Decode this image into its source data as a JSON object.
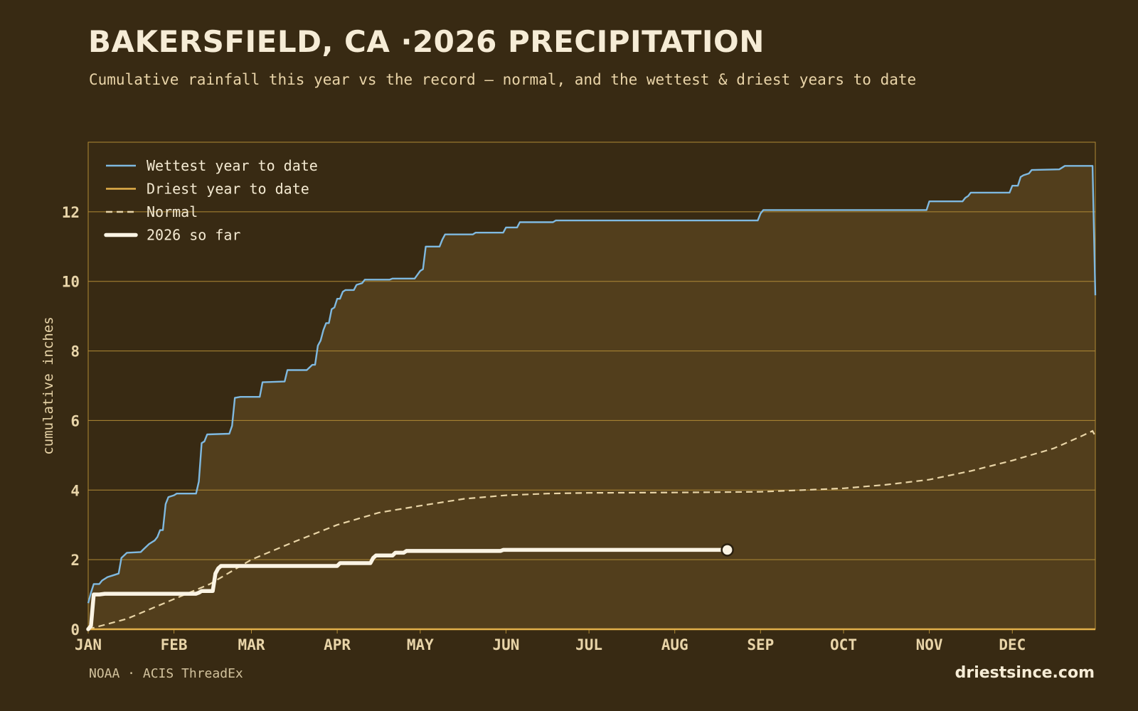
{
  "header": {
    "title": "BAKERSFIELD, CA ·2026 PRECIPITATION",
    "subtitle": "Cumulative rainfall this year vs the record — normal, and the wettest & driest years to date"
  },
  "footer": {
    "source": "NOAA · ACIS ThreadEx",
    "brand": "driestsince.com"
  },
  "colors": {
    "background": "#382a13",
    "plot_fill": "#523e1c",
    "grid": "#b08a36",
    "wettest": "#7fb9e0",
    "driest": "#e3b04a",
    "normal": "#e8d4a6",
    "current": "#fbf4e4",
    "tick_text": "#e8d4a8"
  },
  "chart_data": {
    "type": "line",
    "xlabel": "",
    "ylabel": "cumulative inches",
    "xlim": [
      1,
      365
    ],
    "ylim": [
      0,
      14
    ],
    "yticks": [
      0,
      2,
      4,
      6,
      8,
      10,
      12
    ],
    "xticks": [
      {
        "day": 1,
        "label": "JAN"
      },
      {
        "day": 32,
        "label": "FEB"
      },
      {
        "day": 60,
        "label": "MAR"
      },
      {
        "day": 91,
        "label": "APR"
      },
      {
        "day": 121,
        "label": "MAY"
      },
      {
        "day": 152,
        "label": "JUN"
      },
      {
        "day": 182,
        "label": "JUL"
      },
      {
        "day": 213,
        "label": "AUG"
      },
      {
        "day": 244,
        "label": "SEP"
      },
      {
        "day": 274,
        "label": "OCT"
      },
      {
        "day": 305,
        "label": "NOV"
      },
      {
        "day": 335,
        "label": "DEC"
      }
    ],
    "grid": "horizontal",
    "legend_position": "top-left",
    "series": [
      {
        "name": "Wettest year to date",
        "style": "solid",
        "points": [
          [
            1,
            0.75
          ],
          [
            2,
            1.05
          ],
          [
            3,
            1.3
          ],
          [
            5,
            1.3
          ],
          [
            6,
            1.4
          ],
          [
            8,
            1.5
          ],
          [
            10,
            1.55
          ],
          [
            12,
            1.6
          ],
          [
            13,
            2.05
          ],
          [
            15,
            2.2
          ],
          [
            20,
            2.22
          ],
          [
            21,
            2.3
          ],
          [
            23,
            2.45
          ],
          [
            25,
            2.55
          ],
          [
            26,
            2.65
          ],
          [
            27,
            2.85
          ],
          [
            28,
            2.85
          ],
          [
            29,
            3.6
          ],
          [
            30,
            3.8
          ],
          [
            32,
            3.85
          ],
          [
            33,
            3.9
          ],
          [
            40,
            3.9
          ],
          [
            41,
            4.25
          ],
          [
            42,
            5.35
          ],
          [
            43,
            5.4
          ],
          [
            44,
            5.6
          ],
          [
            52,
            5.62
          ],
          [
            53,
            5.85
          ],
          [
            54,
            6.65
          ],
          [
            56,
            6.68
          ],
          [
            63,
            6.68
          ],
          [
            64,
            7.1
          ],
          [
            72,
            7.12
          ],
          [
            73,
            7.45
          ],
          [
            80,
            7.45
          ],
          [
            82,
            7.6
          ],
          [
            83,
            7.6
          ],
          [
            84,
            8.15
          ],
          [
            85,
            8.3
          ],
          [
            86,
            8.6
          ],
          [
            87,
            8.8
          ],
          [
            88,
            8.8
          ],
          [
            89,
            9.2
          ],
          [
            90,
            9.25
          ],
          [
            91,
            9.5
          ],
          [
            92,
            9.5
          ],
          [
            93,
            9.7
          ],
          [
            94,
            9.75
          ],
          [
            97,
            9.75
          ],
          [
            98,
            9.9
          ],
          [
            100,
            9.95
          ],
          [
            101,
            10.05
          ],
          [
            110,
            10.05
          ],
          [
            111,
            10.08
          ],
          [
            119,
            10.08
          ],
          [
            121,
            10.3
          ],
          [
            122,
            10.35
          ],
          [
            123,
            11.0
          ],
          [
            128,
            11.0
          ],
          [
            129,
            11.2
          ],
          [
            130,
            11.35
          ],
          [
            140,
            11.35
          ],
          [
            141,
            11.4
          ],
          [
            151,
            11.4
          ],
          [
            152,
            11.55
          ],
          [
            156,
            11.55
          ],
          [
            157,
            11.7
          ],
          [
            169,
            11.7
          ],
          [
            170,
            11.75
          ],
          [
            243,
            11.75
          ],
          [
            244,
            11.95
          ],
          [
            245,
            12.05
          ],
          [
            304,
            12.05
          ],
          [
            305,
            12.3
          ],
          [
            317,
            12.3
          ],
          [
            318,
            12.4
          ],
          [
            319,
            12.45
          ],
          [
            320,
            12.55
          ],
          [
            334,
            12.55
          ],
          [
            335,
            12.75
          ],
          [
            337,
            12.75
          ],
          [
            338,
            13.0
          ],
          [
            339,
            13.05
          ],
          [
            341,
            13.1
          ],
          [
            342,
            13.2
          ],
          [
            352,
            13.22
          ],
          [
            354,
            13.32
          ],
          [
            364,
            13.32
          ],
          [
            365,
            9.6
          ]
        ]
      },
      {
        "name": "Driest year to date",
        "style": "solid",
        "points": [
          [
            1,
            0.0
          ],
          [
            365,
            0.0
          ]
        ]
      },
      {
        "name": "Normal",
        "style": "dashed",
        "points": [
          [
            1,
            0.0
          ],
          [
            15,
            0.3
          ],
          [
            30,
            0.8
          ],
          [
            45,
            1.3
          ],
          [
            60,
            2.0
          ],
          [
            75,
            2.5
          ],
          [
            91,
            3.0
          ],
          [
            106,
            3.35
          ],
          [
            121,
            3.55
          ],
          [
            137,
            3.75
          ],
          [
            152,
            3.85
          ],
          [
            167,
            3.9
          ],
          [
            182,
            3.92
          ],
          [
            213,
            3.93
          ],
          [
            244,
            3.95
          ],
          [
            259,
            4.0
          ],
          [
            274,
            4.05
          ],
          [
            289,
            4.15
          ],
          [
            305,
            4.3
          ],
          [
            320,
            4.55
          ],
          [
            335,
            4.85
          ],
          [
            350,
            5.2
          ],
          [
            360,
            5.55
          ],
          [
            364,
            5.7
          ],
          [
            365,
            5.55
          ]
        ]
      },
      {
        "name": "2026 so far",
        "style": "solid-thick",
        "points": [
          [
            1,
            0.0
          ],
          [
            2,
            0.1
          ],
          [
            3,
            1.0
          ],
          [
            5,
            1.0
          ],
          [
            7,
            1.02
          ],
          [
            40,
            1.02
          ],
          [
            41,
            1.05
          ],
          [
            42,
            1.1
          ],
          [
            46,
            1.1
          ],
          [
            47,
            1.6
          ],
          [
            48,
            1.75
          ],
          [
            49,
            1.82
          ],
          [
            91,
            1.82
          ],
          [
            92,
            1.9
          ],
          [
            103,
            1.9
          ],
          [
            104,
            2.05
          ],
          [
            105,
            2.12
          ],
          [
            111,
            2.12
          ],
          [
            112,
            2.2
          ],
          [
            115,
            2.2
          ],
          [
            116,
            2.25
          ],
          [
            150,
            2.25
          ],
          [
            151,
            2.28
          ],
          [
            232,
            2.28
          ]
        ],
        "endpoint": [
          232,
          2.28
        ]
      }
    ]
  }
}
